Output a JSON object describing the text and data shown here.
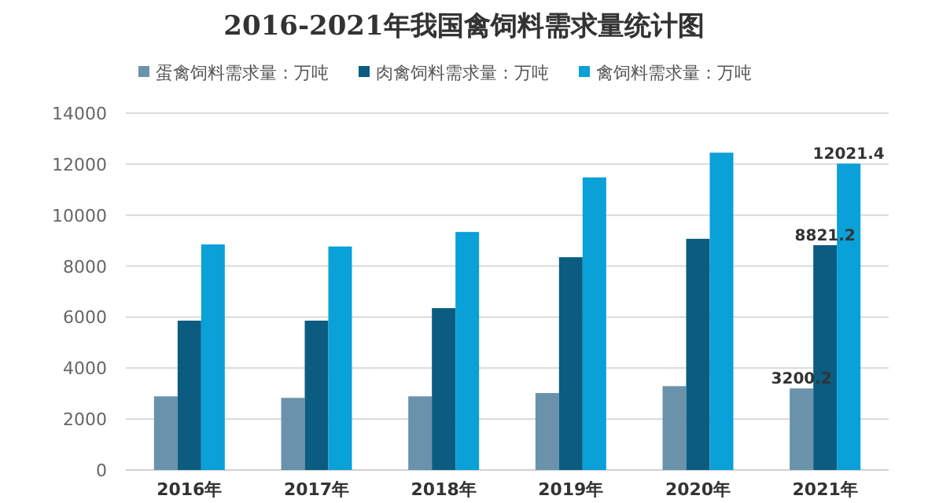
{
  "chart_data": {
    "type": "bar",
    "title": "2016-2021年我国禽饲料需求量统计图",
    "categories": [
      "2016年",
      "2017年",
      "2018年",
      "2019年",
      "2020年",
      "2021年"
    ],
    "series": [
      {
        "name": "蛋禽饲料需求量：万吨",
        "color": "#6a93ab",
        "values": [
          2890,
          2830,
          2890,
          3020,
          3290,
          3200.2
        ],
        "value_labels": [
          null,
          null,
          null,
          null,
          null,
          "3200.2"
        ]
      },
      {
        "name": "肉禽饲料需求量：万吨",
        "color": "#0b5c80",
        "values": [
          5860,
          5860,
          6350,
          8350,
          9070,
          8821.2
        ],
        "value_labels": [
          null,
          null,
          null,
          null,
          null,
          "8821.2"
        ]
      },
      {
        "name": "禽饲料需求量：万吨",
        "color": "#0aa0d8",
        "values": [
          8850,
          8770,
          9340,
          11480,
          12450,
          12021.4
        ],
        "value_labels": [
          null,
          null,
          null,
          null,
          null,
          "12021.4"
        ]
      }
    ],
    "ylim": [
      0,
      14000
    ],
    "yticks": [
      0,
      2000,
      4000,
      6000,
      8000,
      10000,
      12000,
      14000
    ],
    "grid": "y",
    "legend": "top"
  }
}
